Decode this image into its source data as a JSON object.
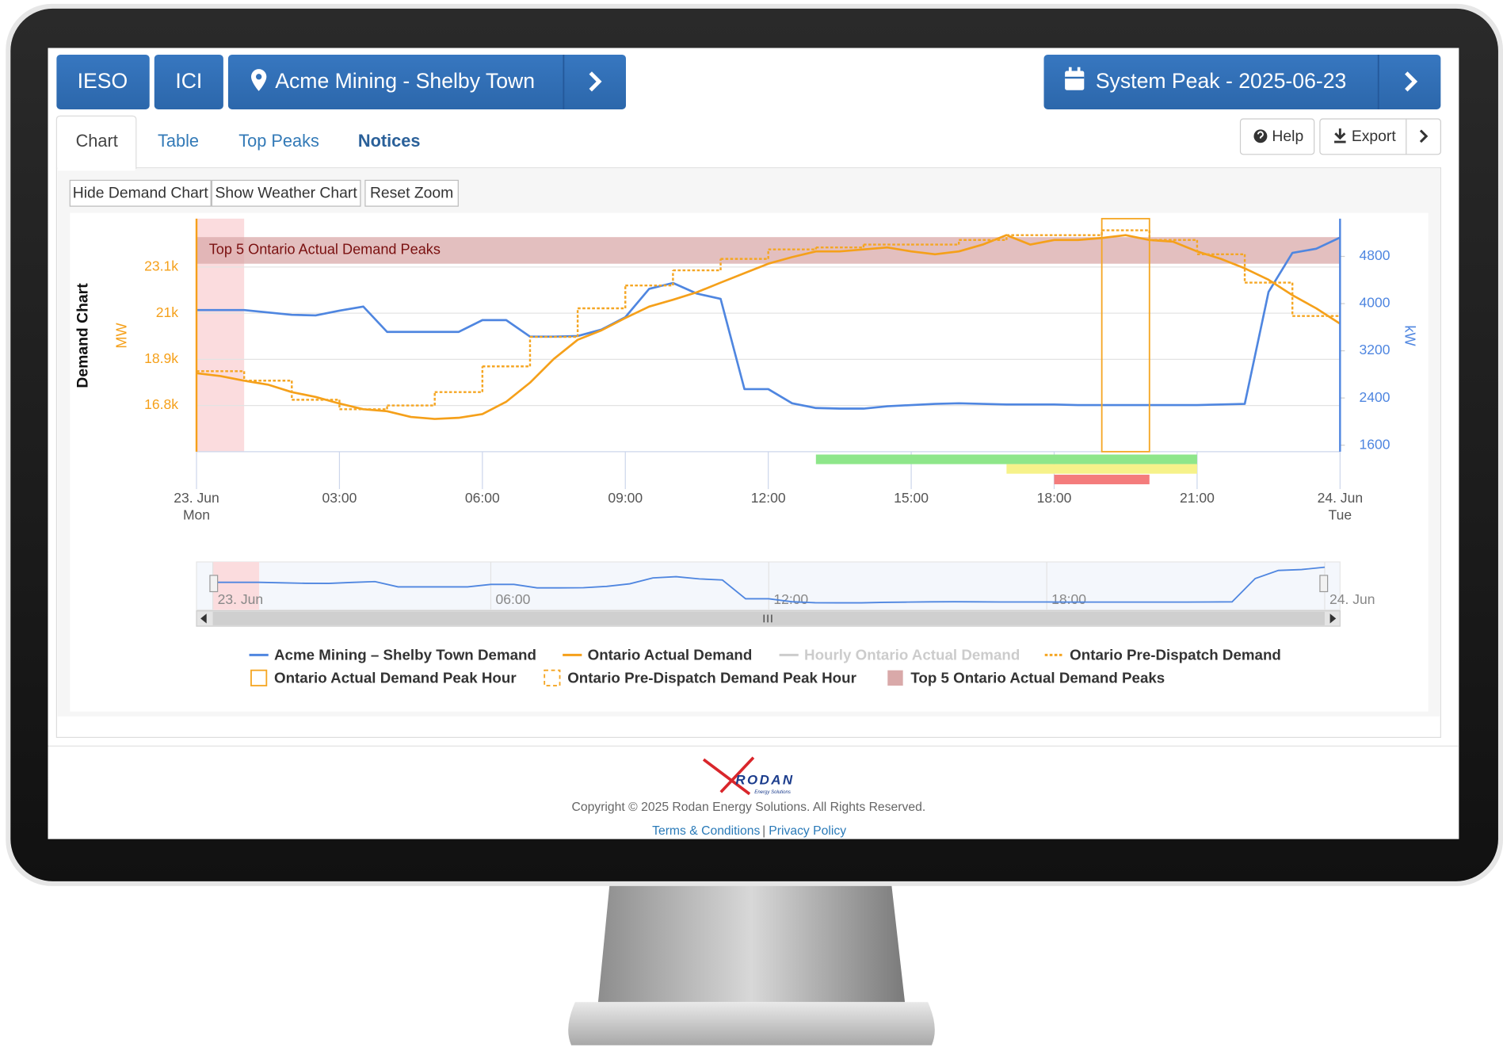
{
  "header": {
    "buttons": [
      "IESO",
      "ICI"
    ],
    "location": "Acme Mining - Shelby Town",
    "system_peak": "System Peak - 2025-06-23"
  },
  "tabs": [
    "Chart",
    "Table",
    "Top Peaks",
    "Notices"
  ],
  "tools": [
    "Help",
    "Export"
  ],
  "chart_buttons": [
    "Hide Demand Chart",
    "Show Weather Chart",
    "Reset Zoom"
  ],
  "chart_data": {
    "type": "line",
    "title": "Demand Chart",
    "ylabel": "MW",
    "y2label": "kW",
    "x": [
      0,
      0.5,
      1,
      1.5,
      2,
      2.5,
      3,
      3.5,
      4,
      4.5,
      5,
      5.5,
      6,
      6.5,
      7,
      7.5,
      8,
      8.5,
      9,
      9.5,
      10,
      10.5,
      11,
      11.5,
      12,
      12.5,
      13,
      13.5,
      14,
      14.5,
      15,
      15.5,
      16,
      16.5,
      17,
      17.5,
      18,
      18.5,
      19,
      19.5,
      20,
      20.5,
      21,
      21.5,
      22,
      22.5,
      23,
      23.5,
      24
    ],
    "xlim": [
      0,
      24
    ],
    "xticks": [
      {
        "value": 0,
        "label": "23. Jun",
        "sublabel": "Mon"
      },
      {
        "value": 3,
        "label": "03:00"
      },
      {
        "value": 6,
        "label": "06:00"
      },
      {
        "value": 9,
        "label": "09:00"
      },
      {
        "value": 12,
        "label": "12:00"
      },
      {
        "value": 15,
        "label": "15:00"
      },
      {
        "value": 18,
        "label": "18:00"
      },
      {
        "value": 21,
        "label": "21:00"
      },
      {
        "value": 24,
        "label": "24. Jun",
        "sublabel": "Tue"
      }
    ],
    "ylim": [
      14700,
      25300
    ],
    "yticks": [
      {
        "value": 16800,
        "label": "16.8k"
      },
      {
        "value": 18900,
        "label": "18.9k"
      },
      {
        "value": 21000,
        "label": "21k"
      },
      {
        "value": 23100,
        "label": "23.1k"
      }
    ],
    "y2lim": [
      1490,
      5440
    ],
    "y2ticks": [
      1600,
      2400,
      3200,
      4000,
      4800
    ],
    "grid": true,
    "series": [
      {
        "name": "Acme Mining – Shelby Town Demand",
        "color": "#4f86e0",
        "axis": "y2",
        "values": [
          3890,
          3890,
          3890,
          3850,
          3810,
          3800,
          3880,
          3950,
          3520,
          3520,
          3520,
          3520,
          3720,
          3720,
          3440,
          3440,
          3450,
          3560,
          3770,
          4250,
          4350,
          4170,
          4080,
          2550,
          2550,
          2310,
          2230,
          2220,
          2220,
          2260,
          2280,
          2300,
          2310,
          2300,
          2290,
          2290,
          2290,
          2280,
          2280,
          2280,
          2280,
          2280,
          2280,
          2290,
          2300,
          4200,
          4860,
          4930,
          5120
        ]
      },
      {
        "name": "Ontario Actual Demand",
        "color": "#f5a01a",
        "values": [
          18270,
          18140,
          17930,
          17750,
          17410,
          17190,
          16890,
          16630,
          16540,
          16280,
          16190,
          16240,
          16410,
          16970,
          17840,
          18920,
          19790,
          20220,
          20780,
          21300,
          21610,
          21950,
          22390,
          22820,
          23250,
          23550,
          23810,
          23810,
          23900,
          23990,
          23810,
          23680,
          23810,
          24120,
          24550,
          24120,
          24330,
          24330,
          24420,
          24550,
          24330,
          24250,
          23810,
          23470,
          23040,
          22520,
          21820,
          21220,
          20520
        ]
      },
      {
        "name": "Hourly Ontario Actual Demand",
        "color": "#cccccc",
        "visible": false
      },
      {
        "name": "Ontario Pre-Dispatch Demand",
        "color": "#f5a623",
        "dash": "dotted",
        "step": true,
        "x": [
          0,
          1,
          2,
          3,
          4,
          5,
          6,
          7,
          8,
          9,
          10,
          11,
          12,
          13,
          14,
          15,
          16,
          17,
          18,
          19,
          20,
          21,
          22,
          23
        ],
        "values": [
          18360,
          17930,
          17060,
          16630,
          16800,
          17410,
          18580,
          19920,
          21220,
          22260,
          22950,
          23470,
          23900,
          23990,
          24120,
          24120,
          24330,
          24550,
          24550,
          24770,
          24330,
          23680,
          22390,
          20870
        ]
      }
    ],
    "peak_hour": {
      "name": "Ontario Actual Demand Peak Hour",
      "from": 19,
      "to": 20,
      "color": "#f5a623"
    },
    "predispatch_peak_hour": {
      "name": "Ontario Pre-Dispatch Demand Peak Hour",
      "color": "#f5a623",
      "visible": false
    },
    "plot_band": {
      "name": "Top 5 Ontario Actual Demand Peaks",
      "from": 23250,
      "to": 24460,
      "color": "#d9a9a9"
    },
    "x_band": {
      "from": 0,
      "to": 1,
      "color": "#fbdcde"
    },
    "alert_bands": [
      {
        "from": 13,
        "to": 21,
        "color": "#8ee68a"
      },
      {
        "from": 17,
        "to": 21,
        "color": "#f6f28a"
      },
      {
        "from": 18,
        "to": 20,
        "color": "#f47c7c"
      }
    ],
    "navigator": {
      "xticks": [
        {
          "value": 0,
          "label": "23. Jun"
        },
        {
          "value": 6,
          "label": "06:00"
        },
        {
          "value": 12,
          "label": "12:00"
        },
        {
          "value": 18,
          "label": "18:00"
        },
        {
          "value": 24,
          "label": "24. Jun"
        }
      ]
    }
  },
  "footer": {
    "logo": "RODAN",
    "logo_sub": "Energy Solutions",
    "copyright": "Copyright © 2025 Rodan Energy Solutions. All Rights Reserved.",
    "links": [
      "Terms & Conditions",
      "Privacy Policy"
    ],
    "link_separator": "|"
  }
}
